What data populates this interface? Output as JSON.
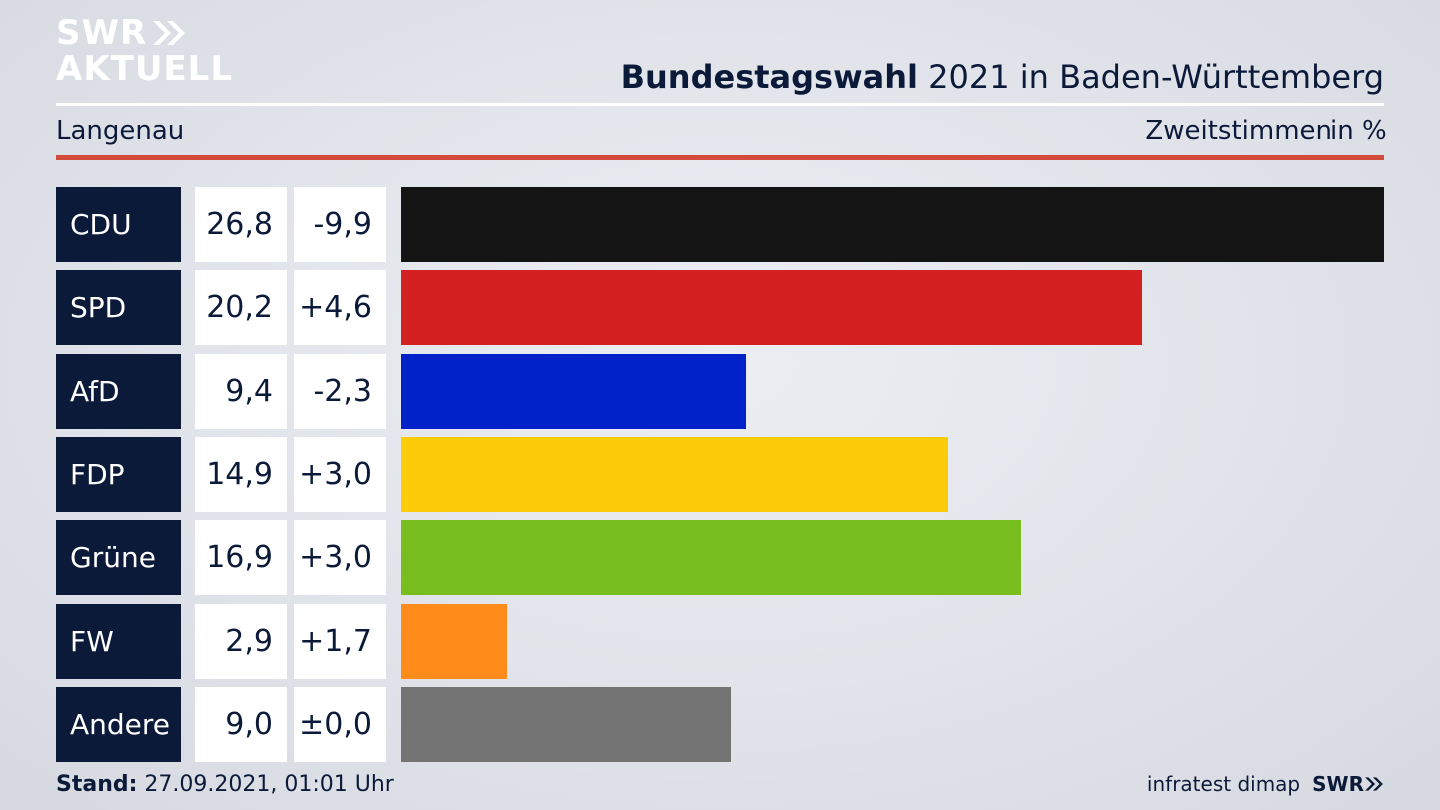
{
  "header": {
    "logo_line1": "SWR",
    "logo_line2": "AKTUELL",
    "title_bold": "Bundestagswahl",
    "title_rest": " 2021 in Baden-Württemberg",
    "subtitle": "Langenau",
    "metric": "Zweitstimmen",
    "unit": "in %"
  },
  "colors": {
    "navy": "#0c1a3a",
    "accent_red": "#d44a3a"
  },
  "chart_data": {
    "type": "bar",
    "orientation": "horizontal",
    "categories": [
      "CDU",
      "SPD",
      "AfD",
      "FDP",
      "Grüne",
      "FW",
      "Andere"
    ],
    "values": [
      26.8,
      20.2,
      9.4,
      14.9,
      16.9,
      2.9,
      9.0
    ],
    "value_labels": [
      "26,8",
      "20,2",
      "9,4",
      "14,9",
      "16,9",
      "2,9",
      "9,0"
    ],
    "change_labels": [
      "-9,9",
      "+4,6",
      "-2,3",
      "+3,0",
      "+3,0",
      "+1,7",
      "±0,0"
    ],
    "colors": [
      "#141414",
      "#d42020",
      "#0022c8",
      "#fccc0a",
      "#78be1e",
      "#ff8c1a",
      "#737373"
    ],
    "xlim": [
      0,
      26.8
    ]
  },
  "footer": {
    "stand_label": "Stand:",
    "stand_value": " 27.09.2021, 01:01 Uhr",
    "source": "infratest dimap",
    "brand": "SWR"
  }
}
